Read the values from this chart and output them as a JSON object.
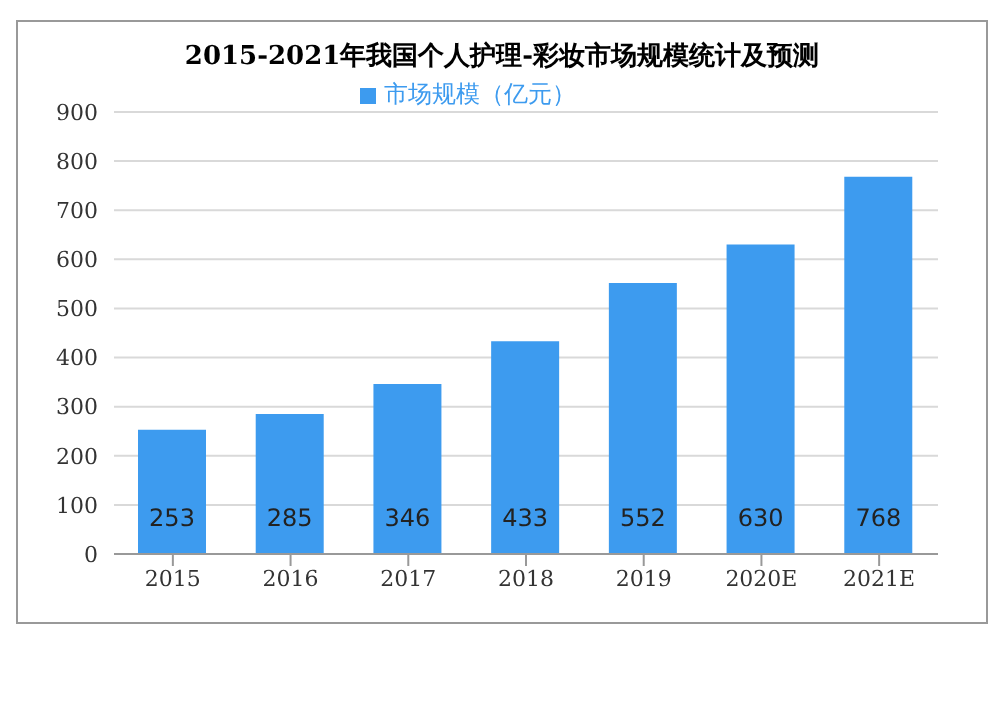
{
  "chart_data": {
    "type": "bar",
    "title": "2015-2021年我国个人护理-彩妆市场规模统计及预测",
    "categories": [
      "2015",
      "2016",
      "2017",
      "2018",
      "2019",
      "2020E",
      "2021E"
    ],
    "series": [
      {
        "name": "市场规模（亿元）",
        "color": "#3d9bef",
        "values": [
          253,
          285,
          346,
          433,
          552,
          630,
          768
        ]
      }
    ],
    "ylim": [
      0,
      900
    ],
    "yticks": [
      0,
      100,
      200,
      300,
      400,
      500,
      600,
      700,
      800,
      900
    ],
    "grid": "y",
    "legend": "top",
    "data_labels": true
  }
}
